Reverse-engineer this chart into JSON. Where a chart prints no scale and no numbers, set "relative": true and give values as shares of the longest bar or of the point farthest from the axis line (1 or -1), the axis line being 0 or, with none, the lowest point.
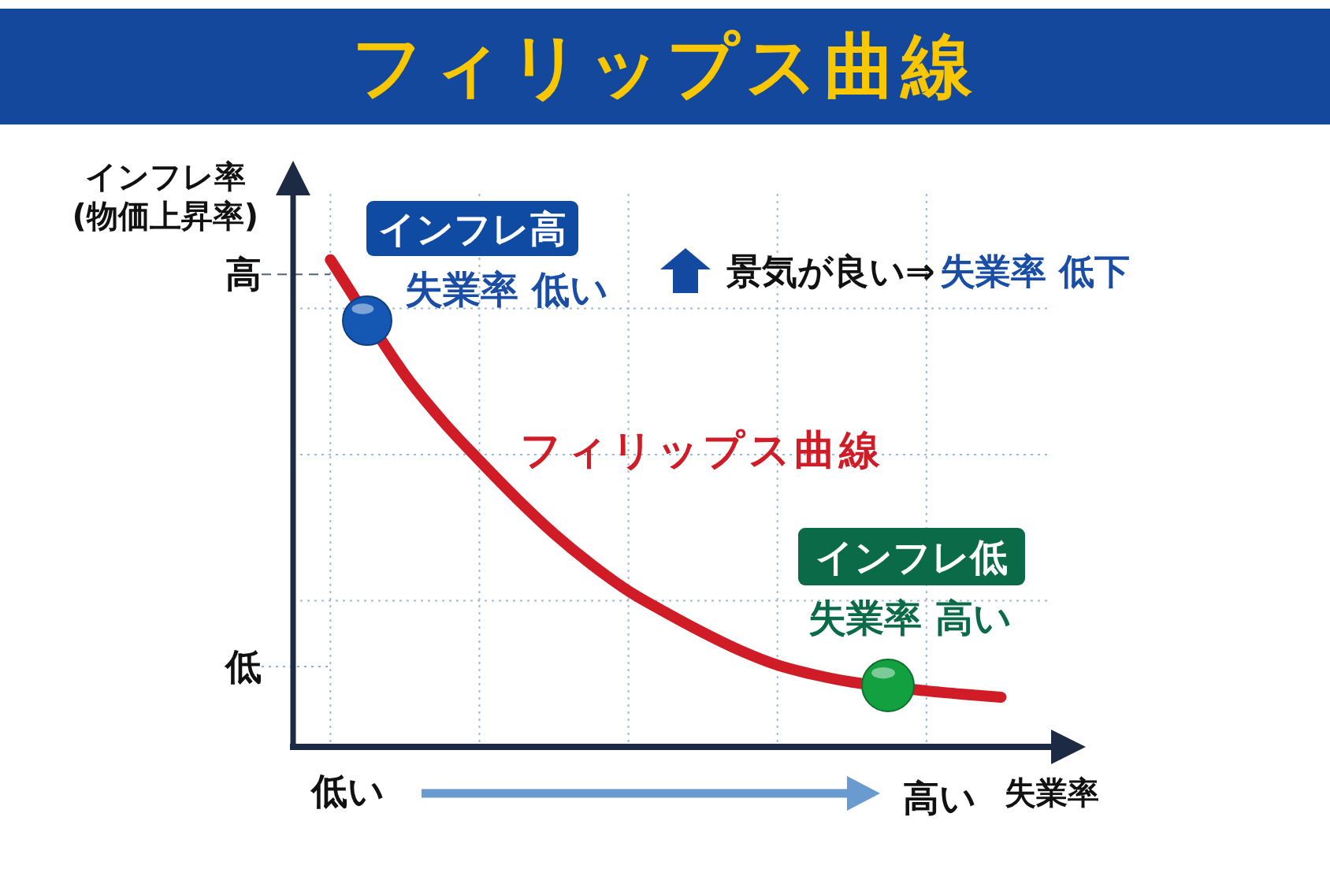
{
  "chart_data": {
    "type": "line",
    "title": "フィリップス曲線",
    "xlabel": "失業率",
    "ylabel": "インフレ率\n(物価上昇率)",
    "categories": [
      null,
      null,
      null,
      null,
      null,
      null,
      null,
      null,
      null,
      null,
      null,
      null,
      null,
      null,
      null,
      null,
      null,
      null,
      null,
      null,
      null,
      null
    ],
    "relative": true,
    "grid": true,
    "marker": "none",
    "series": [
      {
        "name": "フィリップス曲線",
        "color": "#d01c26",
        "values": [
          null,
          1,
          null,
          0.764,
          0.67,
          0.588,
          0.51,
          0.438,
          0.375,
          0.32,
          0.276,
          0.235,
          0.198,
          0.168,
          0.148,
          0.133,
          null,
          0.115,
          0.108,
          0.102,
          null,
          null
        ]
      }
    ],
    "ref_lines": [
      {
        "axis": "y",
        "value": 0.97,
        "label": "高",
        "line_style": "dashed",
        "color": "#4d6384"
      },
      {
        "axis": "y",
        "value": 0.165,
        "label": "低",
        "line_style": "dotted",
        "color": "#8fb0d4"
      }
    ],
    "annotations": [
      "インフレ高",
      "失業率 低い",
      "景気が良い⇒",
      "失業率 低下",
      "インフレ低",
      "失業率 高い",
      "低い",
      "高い"
    ]
  }
}
